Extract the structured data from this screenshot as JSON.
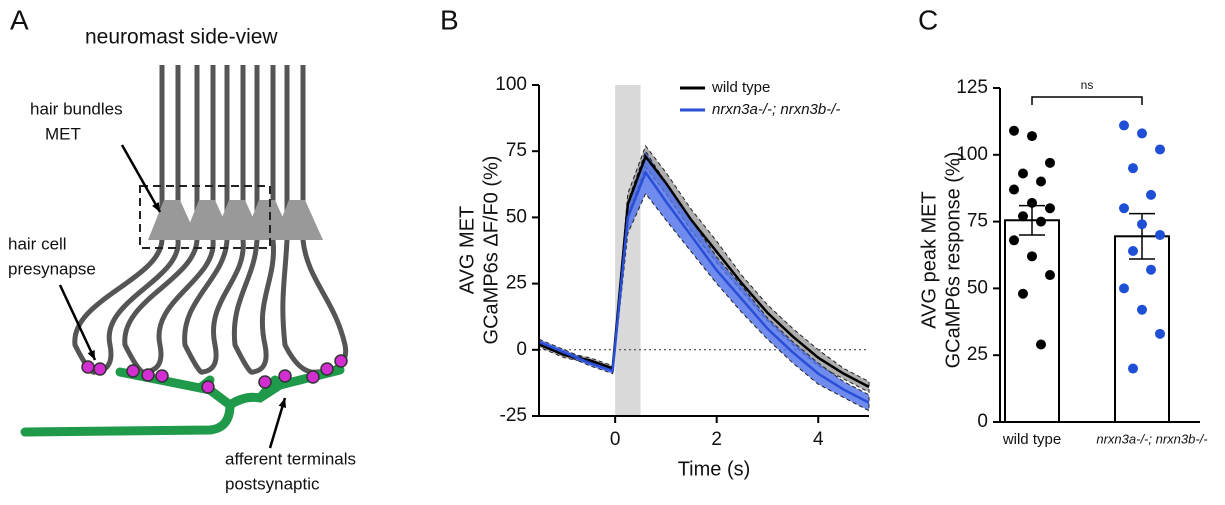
{
  "panel_letters": [
    "A",
    "B",
    "C"
  ],
  "diagram": {
    "title": "neuromast side-view",
    "labels": [
      "hair bundles",
      "MET",
      "hair cell",
      "presynapse",
      "afferent terminals",
      "postsynaptic"
    ]
  },
  "chart_data": [
    {
      "type": "line",
      "ylabel": [
        "AVG MET",
        "GCaMP6s ΔF/F0 (%)"
      ],
      "xlabel": "Time (s)",
      "xlim": [
        -1.5,
        5
      ],
      "xticks": [
        0,
        2,
        4
      ],
      "ylim": [
        -25,
        100
      ],
      "yticks": [
        -25,
        0,
        25,
        50,
        75,
        100
      ],
      "stimulus": [
        0,
        0.5
      ],
      "hline": 0,
      "x": [
        -1.5,
        -1,
        -0.5,
        -0.05,
        0.25,
        0.6,
        1,
        1.5,
        2,
        2.5,
        3,
        3.5,
        4,
        4.5,
        5
      ],
      "series": [
        {
          "name": "wild type",
          "color": "#000000",
          "band_color": "#9a9a9a",
          "values": [
            2,
            -2,
            -4,
            -7,
            55,
            73,
            63,
            49,
            37,
            25,
            14,
            5,
            -3,
            -9,
            -14
          ],
          "errors": [
            1,
            1,
            1,
            1,
            4,
            4,
            4,
            4,
            4,
            3,
            3,
            3,
            3,
            2,
            2
          ]
        },
        {
          "name": "nrxn3a-/-; nrxn3b-/-",
          "color": "#2a4fd6",
          "band_color": "#4a6ee8",
          "values": [
            3,
            -1,
            -5,
            -8,
            50,
            67,
            56,
            43,
            30,
            19,
            8,
            -1,
            -9,
            -15,
            -20
          ],
          "errors": [
            1,
            1,
            1,
            1,
            6,
            8,
            7,
            6,
            5,
            5,
            4,
            4,
            4,
            3,
            3
          ]
        }
      ]
    },
    {
      "type": "bar",
      "ylabel": [
        "AVG peak MET",
        "GCaMP6s response (%)"
      ],
      "categories": [
        "wild type",
        "nrxn3a-/-; nrxn3b-/-"
      ],
      "values": [
        75.5,
        69.5
      ],
      "errors": [
        5.5,
        8.5
      ],
      "point_colors": [
        "#000000",
        "#1f4fd6"
      ],
      "points": [
        [
          109,
          107,
          97,
          93,
          90,
          87,
          82,
          80,
          77,
          75,
          68,
          62,
          55,
          48,
          29
        ],
        [
          111,
          108,
          102,
          95,
          85,
          80,
          74,
          70,
          64,
          57,
          50,
          42,
          33,
          20
        ]
      ],
      "annotation": "ns",
      "ylim": [
        0,
        125
      ],
      "yticks": [
        0,
        25,
        50,
        75,
        100,
        125
      ]
    }
  ]
}
